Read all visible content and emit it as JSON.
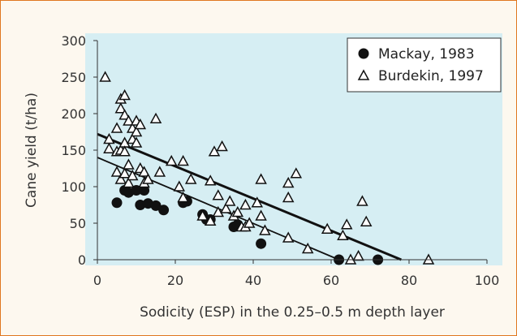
{
  "chart_data": {
    "type": "scatter",
    "xlabel": "Sodicity (ESP) in the 0.25–0.5 m depth layer",
    "ylabel": "Cane yield (t/ha)",
    "xlim": [
      0,
      100
    ],
    "ylim": [
      0,
      300
    ],
    "x_ticks": [
      "0",
      "20",
      "40",
      "60",
      "80",
      "100"
    ],
    "y_ticks": [
      "0",
      "50",
      "100",
      "150",
      "200",
      "250",
      "300"
    ],
    "grid": false,
    "legend_position": "top-right",
    "colors": {
      "plot_bg": "#d6eef3",
      "frame_border": "#e0771f",
      "frame_bg": "#fdf8ef",
      "marker": "#111111"
    },
    "series": [
      {
        "name": "Mackay, 1983",
        "marker": "filled-circle",
        "points": [
          [
            5,
            78
          ],
          [
            7,
            95
          ],
          [
            8,
            92
          ],
          [
            10,
            95
          ],
          [
            11,
            75
          ],
          [
            12,
            95
          ],
          [
            13,
            77
          ],
          [
            15,
            74
          ],
          [
            17,
            68
          ],
          [
            22,
            78
          ],
          [
            23,
            80
          ],
          [
            27,
            62
          ],
          [
            28,
            55
          ],
          [
            29,
            55
          ],
          [
            35,
            45
          ],
          [
            36,
            48
          ],
          [
            42,
            22
          ],
          [
            62,
            0
          ],
          [
            72,
            0
          ]
        ],
        "trend": [
          [
            0,
            140
          ],
          [
            62,
            0
          ]
        ]
      },
      {
        "name": "Burdekin, 1997",
        "marker": "open-triangle",
        "points": [
          [
            2,
            250
          ],
          [
            3,
            165
          ],
          [
            3,
            152
          ],
          [
            5,
            180
          ],
          [
            5,
            148
          ],
          [
            5,
            120
          ],
          [
            6,
            207
          ],
          [
            6,
            220
          ],
          [
            6,
            150
          ],
          [
            6,
            110
          ],
          [
            7,
            225
          ],
          [
            7,
            198
          ],
          [
            7,
            160
          ],
          [
            7,
            148
          ],
          [
            7,
            118
          ],
          [
            8,
            190
          ],
          [
            8,
            130
          ],
          [
            8,
            105
          ],
          [
            9,
            180
          ],
          [
            9,
            165
          ],
          [
            9,
            115
          ],
          [
            10,
            190
          ],
          [
            10,
            175
          ],
          [
            10,
            160
          ],
          [
            11,
            185
          ],
          [
            11,
            125
          ],
          [
            12,
            120
          ],
          [
            12,
            105
          ],
          [
            13,
            110
          ],
          [
            15,
            193
          ],
          [
            16,
            120
          ],
          [
            19,
            135
          ],
          [
            21,
            100
          ],
          [
            22,
            135
          ],
          [
            22,
            85
          ],
          [
            24,
            110
          ],
          [
            27,
            60
          ],
          [
            29,
            108
          ],
          [
            29,
            53
          ],
          [
            30,
            148
          ],
          [
            31,
            88
          ],
          [
            31,
            65
          ],
          [
            32,
            155
          ],
          [
            33,
            70
          ],
          [
            34,
            80
          ],
          [
            35,
            60
          ],
          [
            36,
            65
          ],
          [
            37,
            45
          ],
          [
            38,
            75
          ],
          [
            38,
            45
          ],
          [
            39,
            50
          ],
          [
            41,
            78
          ],
          [
            42,
            110
          ],
          [
            42,
            60
          ],
          [
            43,
            40
          ],
          [
            49,
            105
          ],
          [
            49,
            85
          ],
          [
            49,
            30
          ],
          [
            51,
            118
          ],
          [
            54,
            15
          ],
          [
            59,
            42
          ],
          [
            63,
            33
          ],
          [
            64,
            48
          ],
          [
            65,
            0
          ],
          [
            67,
            5
          ],
          [
            68,
            80
          ],
          [
            69,
            52
          ],
          [
            85,
            0
          ]
        ],
        "trend": [
          [
            0,
            172
          ],
          [
            78,
            0
          ]
        ]
      }
    ]
  }
}
